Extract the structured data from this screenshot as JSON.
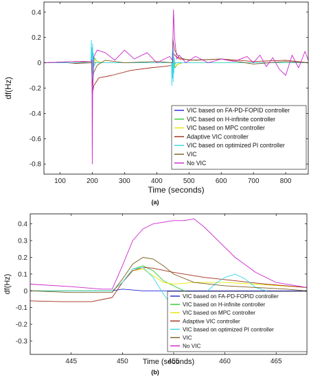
{
  "chart_data": [
    {
      "type": "line",
      "panel_label": "(a)",
      "xlabel": "Time (seconds)",
      "ylabel": "df(Hz)",
      "xlim": [
        50,
        870
      ],
      "ylim": [
        -0.88,
        0.48
      ],
      "xticks": [
        100,
        200,
        300,
        400,
        500,
        600,
        700,
        800
      ],
      "yticks": [
        -0.8,
        -0.6,
        -0.4,
        -0.2,
        0,
        0.2,
        0.4
      ],
      "ytick_labels": [
        "-0.8",
        "-0.6",
        "-0.4",
        "-0.2",
        "0",
        "0.2",
        "0.4"
      ],
      "grid": false,
      "legend_position": "lower-right",
      "series": [
        {
          "name": "VIC based on FA-PD-FOPID controller",
          "color": "#1f1fd6",
          "x": [
            50,
            199,
            200,
            203,
            210,
            449,
            450,
            453,
            460,
            870
          ],
          "y": [
            0,
            0,
            -0.02,
            0.005,
            0,
            0,
            0.02,
            -0.004,
            0,
            0
          ]
        },
        {
          "name": "VIC based on H-infinite controller",
          "color": "#2ecc2e",
          "x": [
            50,
            198,
            200,
            202,
            206,
            215,
            230,
            449,
            450,
            452,
            456,
            465,
            480,
            870
          ],
          "y": [
            0,
            0,
            -0.12,
            -0.05,
            0.04,
            0.01,
            0,
            0,
            0.12,
            0.05,
            -0.04,
            -0.01,
            0,
            0
          ]
        },
        {
          "name": "VIC based on MPC controller",
          "color": "#e6e600",
          "x": [
            50,
            198,
            200,
            203,
            210,
            225,
            449,
            450,
            453,
            460,
            475,
            870
          ],
          "y": [
            0,
            0,
            -0.07,
            -0.02,
            0.02,
            0,
            0,
            0.07,
            0.02,
            -0.02,
            0,
            0
          ]
        },
        {
          "name": "Adaptive VIC controller",
          "color": "#a02a1a",
          "x": [
            50,
            100,
            150,
            198,
            200,
            205,
            220,
            260,
            320,
            380,
            420,
            449,
            450,
            455,
            470,
            520,
            600,
            700,
            800,
            870
          ],
          "y": [
            0,
            0.005,
            -0.005,
            0,
            -0.24,
            -0.18,
            -0.12,
            -0.1,
            -0.06,
            -0.04,
            -0.03,
            -0.02,
            0.09,
            0.06,
            0.03,
            0.02,
            0.03,
            0.01,
            0.02,
            0
          ]
        },
        {
          "name": "VIC based on optimized PI controller",
          "color": "#33d6e6",
          "x": [
            50,
            196,
            197,
            198,
            199,
            200,
            201,
            202,
            203,
            205,
            210,
            446,
            447,
            448,
            449,
            450,
            451,
            452,
            453,
            454,
            456,
            460,
            870
          ],
          "y": [
            0,
            0,
            0.18,
            -0.08,
            0.12,
            -0.2,
            0.15,
            -0.1,
            0.08,
            -0.03,
            0,
            0,
            -0.18,
            0.08,
            -0.12,
            0.2,
            -0.15,
            0.1,
            -0.08,
            0.04,
            -0.01,
            0,
            0
          ]
        },
        {
          "name": "VIC",
          "color": "#7a5a1a",
          "x": [
            50,
            150,
            198,
            200,
            204,
            215,
            240,
            300,
            400,
            449,
            450,
            455,
            470,
            500,
            600,
            700,
            800,
            870
          ],
          "y": [
            0,
            0.01,
            0,
            -0.18,
            -0.08,
            -0.02,
            0.02,
            0,
            0.01,
            0,
            0.19,
            0.1,
            0.04,
            0.02,
            0.03,
            -0.01,
            0.01,
            0
          ]
        },
        {
          "name": "No VIC",
          "color": "#cc22cc",
          "x": [
            50,
            100,
            150,
            195,
            199,
            200,
            201,
            205,
            215,
            240,
            270,
            300,
            330,
            370,
            400,
            440,
            449,
            452,
            455,
            458,
            462,
            470,
            490,
            520,
            560,
            600,
            640,
            680,
            700,
            720,
            740,
            760,
            780,
            800,
            820,
            840,
            860,
            870
          ],
          "y": [
            0,
            0.005,
            0.01,
            0.01,
            0.02,
            -0.8,
            -0.25,
            0.05,
            0.1,
            0.08,
            0.02,
            0.1,
            0.03,
            0.08,
            0.0,
            0.05,
            0.02,
            0.42,
            0.2,
            0.13,
            0.03,
            0.06,
            0.0,
            0.05,
            0.0,
            0.03,
            0.01,
            0.05,
            0.0,
            0.06,
            -0.03,
            0.04,
            -0.05,
            -0.1,
            0.06,
            -0.04,
            0.09,
            0.02
          ]
        }
      ]
    },
    {
      "type": "line",
      "panel_label": "(b)",
      "xlabel": "Time (seconds)",
      "ylabel": "df(Hz)",
      "xlim": [
        441,
        468
      ],
      "ylim": [
        -0.38,
        0.46
      ],
      "xticks": [
        445,
        450,
        455,
        460,
        465
      ],
      "yticks": [
        -0.3,
        -0.2,
        -0.1,
        0,
        0.1,
        0.2,
        0.3,
        0.4
      ],
      "ytick_labels": [
        "-0.3",
        "-0.2",
        "-0.1",
        "0",
        "0.1",
        "0.2",
        "0.3",
        "0.4"
      ],
      "grid": false,
      "legend_position": "lower-right",
      "series": [
        {
          "name": "VIC based on FA-PD-FOPID controller",
          "color": "#1f1fd6",
          "x": [
            441,
            449,
            450,
            452,
            455,
            468
          ],
          "y": [
            0,
            0,
            0.01,
            0.0,
            0,
            0
          ]
        },
        {
          "name": "VIC based on H-infinite controller",
          "color": "#2ecc2e",
          "x": [
            441,
            449,
            450,
            451,
            452,
            453,
            454,
            456,
            458,
            461,
            465,
            468
          ],
          "y": [
            0.0,
            0.0,
            0.05,
            0.13,
            0.15,
            0.12,
            0.06,
            0.0,
            -0.02,
            -0.03,
            -0.02,
            -0.01
          ]
        },
        {
          "name": "VIC based on MPC controller",
          "color": "#e6e600",
          "x": [
            441,
            449,
            450,
            451,
            452,
            453,
            454,
            455,
            457,
            460,
            463,
            468
          ],
          "y": [
            0.0,
            0.0,
            0.05,
            0.12,
            0.13,
            0.09,
            0.05,
            0.04,
            0.05,
            0.05,
            0.04,
            0.02
          ]
        },
        {
          "name": "Adaptive VIC controller",
          "color": "#a02a1a",
          "x": [
            441,
            444,
            447,
            449,
            450,
            451,
            452,
            453,
            455,
            458,
            461,
            464,
            468
          ],
          "y": [
            -0.06,
            -0.065,
            -0.065,
            -0.04,
            0.05,
            0.12,
            0.14,
            0.135,
            0.11,
            0.08,
            0.06,
            0.04,
            0.02
          ]
        },
        {
          "name": "VIC based on optimized PI controller",
          "color": "#33d6e6",
          "x": [
            441,
            449,
            450,
            451,
            452,
            453,
            454,
            455,
            456,
            457,
            459,
            460,
            461,
            462,
            463,
            465,
            468
          ],
          "y": [
            0.0,
            0.0,
            0.05,
            0.13,
            0.14,
            0.08,
            -0.02,
            -0.1,
            -0.13,
            -0.08,
            0.04,
            0.08,
            0.1,
            0.07,
            0.02,
            -0.02,
            -0.01
          ]
        },
        {
          "name": "VIC",
          "color": "#7a5a1a",
          "x": [
            441,
            445,
            449,
            450,
            451,
            452,
            453,
            454,
            455,
            457,
            460,
            463,
            466,
            468
          ],
          "y": [
            0.0,
            -0.01,
            -0.01,
            0.07,
            0.16,
            0.2,
            0.19,
            0.15,
            0.1,
            0.05,
            0.03,
            0.02,
            0.01,
            0.0
          ]
        },
        {
          "name": "No VIC",
          "color": "#cc22cc",
          "x": [
            441,
            445,
            448,
            449,
            450,
            451,
            452,
            453,
            454,
            455,
            456,
            457,
            458,
            459,
            461,
            463,
            465,
            468
          ],
          "y": [
            0.04,
            0.025,
            0.01,
            0.01,
            0.15,
            0.3,
            0.37,
            0.4,
            0.41,
            0.42,
            0.42,
            0.43,
            0.38,
            0.32,
            0.2,
            0.11,
            0.05,
            0.02
          ]
        }
      ]
    }
  ]
}
